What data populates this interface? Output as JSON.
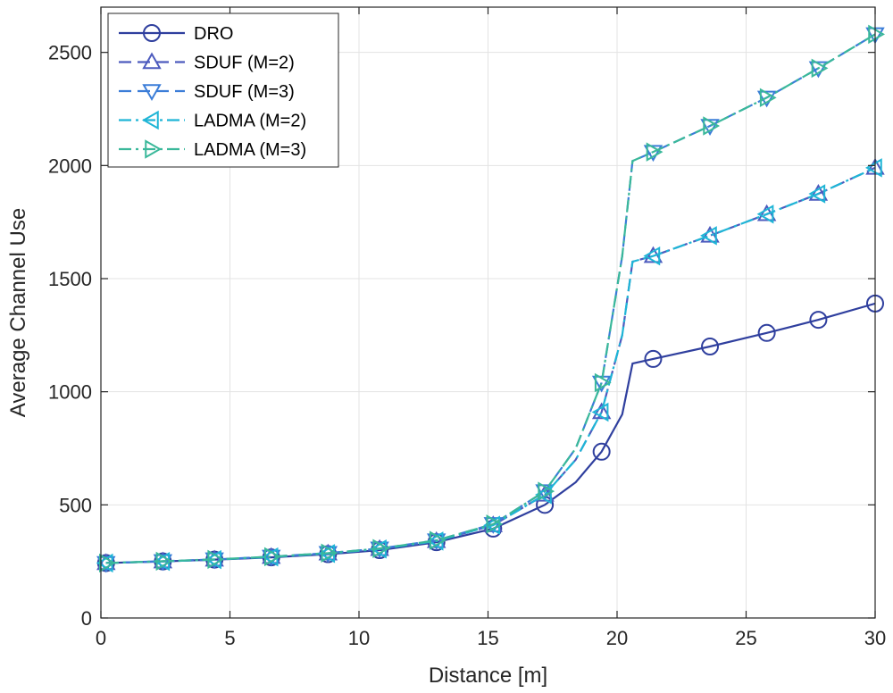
{
  "chart_data": {
    "type": "line",
    "xlabel": "Distance [m]",
    "ylabel": "Average Channel Use",
    "xlim": [
      0,
      30
    ],
    "ylim": [
      0,
      2700
    ],
    "xticks": [
      0,
      5,
      10,
      15,
      20,
      25,
      30
    ],
    "yticks": [
      0,
      500,
      1000,
      1500,
      2000,
      2500
    ],
    "grid": true,
    "legend_position": "top-left",
    "series": [
      {
        "name": "DRO",
        "color": "#2f3f9e",
        "dash": "solid",
        "marker": "circle",
        "x": [
          0.2,
          2.4,
          4.4,
          6.6,
          8.8,
          10.8,
          13.0,
          15.2,
          17.2,
          18.4,
          19.4,
          20.2,
          20.6,
          21.4,
          23.6,
          25.8,
          27.8,
          30.0
        ],
        "y": [
          243,
          250,
          258,
          268,
          282,
          300,
          335,
          395,
          500,
          600,
          735,
          900,
          1125,
          1145,
          1200,
          1260,
          1318,
          1390
        ],
        "marker_x": [
          0.2,
          2.4,
          4.4,
          6.6,
          8.8,
          10.8,
          13.0,
          15.2,
          17.2,
          19.4,
          21.4,
          23.6,
          25.8,
          27.8,
          30.0
        ],
        "marker_y": [
          243,
          250,
          258,
          268,
          282,
          300,
          335,
          395,
          500,
          735,
          1145,
          1200,
          1260,
          1318,
          1390
        ]
      },
      {
        "name": "SDUF (M=2)",
        "color": "#4d5bbe",
        "dash": "dashed",
        "marker": "triangle-up",
        "x": [
          0.2,
          2.4,
          4.4,
          6.6,
          8.8,
          10.8,
          13.0,
          15.2,
          17.2,
          18.4,
          19.4,
          20.2,
          20.6,
          21.4,
          23.6,
          25.8,
          27.8,
          30.0
        ],
        "y": [
          243,
          250,
          258,
          270,
          285,
          305,
          340,
          410,
          545,
          700,
          910,
          1250,
          1575,
          1600,
          1690,
          1785,
          1875,
          1990
        ],
        "marker_x": [
          0.2,
          2.4,
          4.4,
          6.6,
          8.8,
          10.8,
          13.0,
          15.2,
          17.2,
          19.4,
          21.4,
          23.6,
          25.8,
          27.8,
          30.0
        ],
        "marker_y": [
          243,
          250,
          258,
          270,
          285,
          305,
          340,
          410,
          545,
          910,
          1600,
          1690,
          1785,
          1875,
          1990
        ]
      },
      {
        "name": "SDUF (M=3)",
        "color": "#3b7dd8",
        "dash": "dashed",
        "marker": "triangle-down",
        "x": [
          0.2,
          2.4,
          4.4,
          6.6,
          8.8,
          10.8,
          13.0,
          15.2,
          17.2,
          18.4,
          19.4,
          20.2,
          20.6,
          21.4,
          23.6,
          25.8,
          27.8,
          30.0
        ],
        "y": [
          243,
          251,
          259,
          271,
          287,
          307,
          343,
          415,
          560,
          750,
          1040,
          1600,
          2020,
          2060,
          2175,
          2300,
          2430,
          2580
        ],
        "marker_x": [
          0.2,
          2.4,
          4.4,
          6.6,
          8.8,
          10.8,
          13.0,
          15.2,
          17.2,
          19.4,
          21.4,
          23.6,
          25.8,
          27.8,
          30.0
        ],
        "marker_y": [
          243,
          251,
          259,
          271,
          287,
          307,
          343,
          415,
          560,
          1040,
          2060,
          2175,
          2300,
          2430,
          2580
        ]
      },
      {
        "name": "LADMA (M=2)",
        "color": "#1fb5d6",
        "dash": "dashdot",
        "marker": "triangle-left",
        "x": [
          0.2,
          2.4,
          4.4,
          6.6,
          8.8,
          10.8,
          13.0,
          15.2,
          17.2,
          18.4,
          19.4,
          20.2,
          20.6,
          21.4,
          23.6,
          25.8,
          27.8,
          30.0
        ],
        "y": [
          243,
          250,
          258,
          270,
          285,
          305,
          340,
          410,
          545,
          700,
          910,
          1250,
          1575,
          1600,
          1690,
          1785,
          1875,
          1990
        ],
        "marker_x": [
          0.2,
          2.4,
          4.4,
          6.6,
          8.8,
          10.8,
          13.0,
          15.2,
          17.2,
          19.4,
          21.4,
          23.6,
          25.8,
          27.8,
          30.0
        ],
        "marker_y": [
          243,
          250,
          258,
          270,
          285,
          305,
          340,
          410,
          545,
          910,
          1600,
          1690,
          1785,
          1875,
          1990
        ]
      },
      {
        "name": "LADMA (M=3)",
        "color": "#3ab89a",
        "dash": "dashdot",
        "marker": "triangle-right",
        "x": [
          0.2,
          2.4,
          4.4,
          6.6,
          8.8,
          10.8,
          13.0,
          15.2,
          17.2,
          18.4,
          19.4,
          20.2,
          20.6,
          21.4,
          23.6,
          25.8,
          27.8,
          30.0
        ],
        "y": [
          243,
          251,
          259,
          271,
          287,
          307,
          343,
          415,
          560,
          750,
          1040,
          1600,
          2020,
          2060,
          2175,
          2300,
          2430,
          2580
        ],
        "marker_x": [
          0.2,
          2.4,
          4.4,
          6.6,
          8.8,
          10.8,
          13.0,
          15.2,
          17.2,
          19.4,
          21.4,
          23.6,
          25.8,
          27.8,
          30.0
        ],
        "marker_y": [
          243,
          251,
          259,
          271,
          287,
          307,
          343,
          415,
          560,
          1040,
          2060,
          2175,
          2300,
          2430,
          2580
        ]
      }
    ]
  }
}
